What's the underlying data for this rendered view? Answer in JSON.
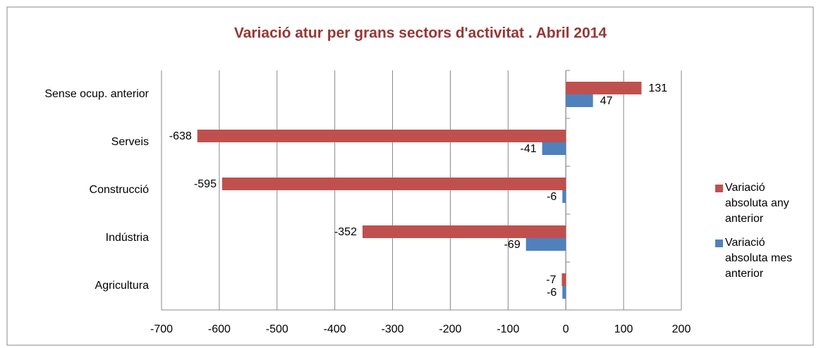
{
  "chart_data": {
    "type": "hbar",
    "title": "Variació atur per grans sectors d'activitat . Abril 2014",
    "categories": [
      "Sense ocup. anterior",
      "Serveis",
      "Construcció",
      "Indústria",
      "Agricultura"
    ],
    "series": [
      {
        "name": "Variació absoluta any anterior",
        "color": "#c0504d",
        "values": [
          131,
          -638,
          -595,
          -352,
          -7
        ]
      },
      {
        "name": "Variació absoluta mes anterior",
        "color": "#4f81bd",
        "values": [
          47,
          -41,
          -6,
          -69,
          -6
        ]
      }
    ],
    "xlim": [
      -700,
      200
    ],
    "xticks": [
      -700,
      -600,
      -500,
      -400,
      -300,
      -200,
      -100,
      0,
      100,
      200
    ],
    "grid": true,
    "legend": "right"
  }
}
